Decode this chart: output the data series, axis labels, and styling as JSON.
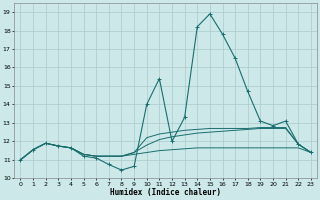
{
  "xlabel": "Humidex (Indice chaleur)",
  "xlim": [
    -0.5,
    23.5
  ],
  "ylim": [
    10,
    19.5
  ],
  "yticks": [
    10,
    11,
    12,
    13,
    14,
    15,
    16,
    17,
    18,
    19
  ],
  "xticks": [
    0,
    1,
    2,
    3,
    4,
    5,
    6,
    7,
    8,
    9,
    10,
    11,
    12,
    13,
    14,
    15,
    16,
    17,
    18,
    19,
    20,
    21,
    22,
    23
  ],
  "bg_color": "#cce8e8",
  "grid_color": "#aacccc",
  "line_color": "#1a6e6e",
  "lines": {
    "main": [
      11.0,
      11.55,
      11.9,
      11.75,
      11.65,
      11.2,
      11.1,
      10.75,
      10.45,
      10.65,
      14.0,
      15.4,
      12.0,
      13.3,
      18.2,
      18.9,
      17.8,
      16.5,
      14.7,
      13.1,
      12.85,
      13.1,
      11.85,
      11.4
    ],
    "flat": [
      11.0,
      11.55,
      11.9,
      11.75,
      11.65,
      11.3,
      11.2,
      11.2,
      11.2,
      11.3,
      11.4,
      11.5,
      11.55,
      11.6,
      11.65,
      11.65,
      11.65,
      11.65,
      11.65,
      11.65,
      11.65,
      11.65,
      11.65,
      11.4
    ],
    "mid1": [
      11.0,
      11.55,
      11.9,
      11.75,
      11.65,
      11.3,
      11.2,
      11.2,
      11.2,
      11.4,
      11.8,
      12.1,
      12.25,
      12.35,
      12.45,
      12.5,
      12.55,
      12.6,
      12.65,
      12.7,
      12.7,
      12.7,
      11.85,
      11.4
    ],
    "mid2": [
      11.0,
      11.55,
      11.9,
      11.75,
      11.65,
      11.3,
      11.2,
      11.2,
      11.2,
      11.4,
      12.2,
      12.4,
      12.5,
      12.6,
      12.65,
      12.7,
      12.7,
      12.7,
      12.7,
      12.75,
      12.75,
      12.75,
      11.85,
      11.4
    ]
  },
  "figsize": [
    3.2,
    2.0
  ],
  "dpi": 100
}
